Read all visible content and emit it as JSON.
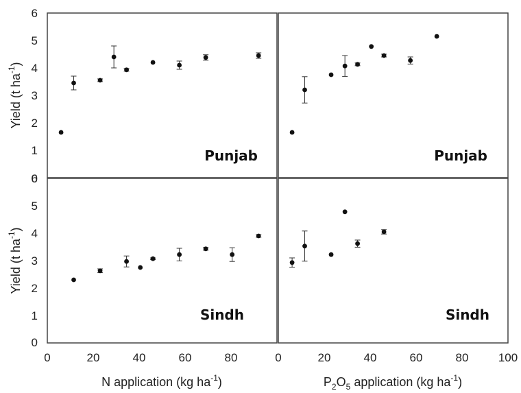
{
  "chart_data": [
    {
      "type": "scatter",
      "panel": "N-Punjab",
      "region": "Punjab",
      "ylabel": "Yield (t ha",
      "ylabel_sup": "-1",
      "ylabel_tail": ")",
      "xlabel": "",
      "xlim": [
        0,
        100
      ],
      "ylim": [
        0,
        6
      ],
      "points": [
        {
          "x": 6,
          "y": 1.65,
          "err": 0
        },
        {
          "x": 11.5,
          "y": 3.45,
          "err": 0.25
        },
        {
          "x": 23,
          "y": 3.55,
          "err": 0.05
        },
        {
          "x": 29,
          "y": 4.4,
          "err": 0.4
        },
        {
          "x": 34.5,
          "y": 3.93,
          "err": 0.05
        },
        {
          "x": 46,
          "y": 4.2,
          "err": 0
        },
        {
          "x": 57.5,
          "y": 4.1,
          "err": 0.15
        },
        {
          "x": 69,
          "y": 4.38,
          "err": 0.1
        },
        {
          "x": 92,
          "y": 4.45,
          "err": 0.1
        }
      ]
    },
    {
      "type": "scatter",
      "panel": "P-Punjab",
      "region": "Punjab",
      "xlabel": "",
      "xlim": [
        0,
        100
      ],
      "ylim": [
        0,
        6
      ],
      "points": [
        {
          "x": 6,
          "y": 1.65,
          "err": 0
        },
        {
          "x": 11.5,
          "y": 3.2,
          "err": 0.48
        },
        {
          "x": 23,
          "y": 3.75,
          "err": 0
        },
        {
          "x": 29,
          "y": 4.07,
          "err": 0.38
        },
        {
          "x": 34.5,
          "y": 4.13,
          "err": 0.05
        },
        {
          "x": 40.5,
          "y": 4.78,
          "err": 0
        },
        {
          "x": 46,
          "y": 4.45,
          "err": 0.05
        },
        {
          "x": 57.5,
          "y": 4.27,
          "err": 0.13
        },
        {
          "x": 69,
          "y": 5.15,
          "err": 0
        }
      ]
    },
    {
      "type": "scatter",
      "panel": "N-Sindh",
      "region": "Sindh",
      "ylabel": "Yield (t ha",
      "ylabel_sup": "-1",
      "ylabel_tail": ")",
      "xlabel": "N application (kg ha",
      "xlabel_sup": "-1",
      "xlabel_tail": ")",
      "xlim": [
        0,
        100
      ],
      "ylim": [
        0,
        6
      ],
      "points": [
        {
          "x": 11.5,
          "y": 2.3,
          "err": 0
        },
        {
          "x": 23,
          "y": 2.63,
          "err": 0.07
        },
        {
          "x": 34.5,
          "y": 2.97,
          "err": 0.2
        },
        {
          "x": 40.5,
          "y": 2.75,
          "err": 0
        },
        {
          "x": 46,
          "y": 3.07,
          "err": 0.03
        },
        {
          "x": 57.5,
          "y": 3.22,
          "err": 0.23
        },
        {
          "x": 69,
          "y": 3.43,
          "err": 0.05
        },
        {
          "x": 80.5,
          "y": 3.22,
          "err": 0.25
        },
        {
          "x": 92,
          "y": 3.9,
          "err": 0.05
        }
      ]
    },
    {
      "type": "scatter",
      "panel": "P-Sindh",
      "region": "Sindh",
      "xlabel_a": "P",
      "xlabel_sub1": "2",
      "xlabel_b": "O",
      "xlabel_sub2": "5",
      "xlabel_c": " application (kg ha",
      "xlabel_sup": "-1",
      "xlabel_tail": ")",
      "xlim": [
        0,
        100
      ],
      "ylim": [
        0,
        6
      ],
      "points": [
        {
          "x": 6,
          "y": 2.93,
          "err": 0.17
        },
        {
          "x": 11.5,
          "y": 3.53,
          "err": 0.55
        },
        {
          "x": 23,
          "y": 3.22,
          "err": 0
        },
        {
          "x": 29,
          "y": 4.78,
          "err": 0
        },
        {
          "x": 34.5,
          "y": 3.62,
          "err": 0.13
        },
        {
          "x": 46,
          "y": 4.05,
          "err": 0.08
        }
      ]
    }
  ],
  "axes": {
    "y_ticks_top": [
      "0",
      "1",
      "2",
      "3",
      "4",
      "5",
      "6"
    ],
    "y_ticks_bottom": [
      "0",
      "1",
      "2",
      "3",
      "4",
      "5",
      "6"
    ],
    "x_ticks_left": [
      "0",
      "20",
      "40",
      "60",
      "80"
    ],
    "x_ticks_right": [
      "0",
      "20",
      "40",
      "60",
      "80",
      "100"
    ]
  },
  "colors": {
    "marker": "#111111",
    "frame": "#444444",
    "background": "#ffffff"
  }
}
